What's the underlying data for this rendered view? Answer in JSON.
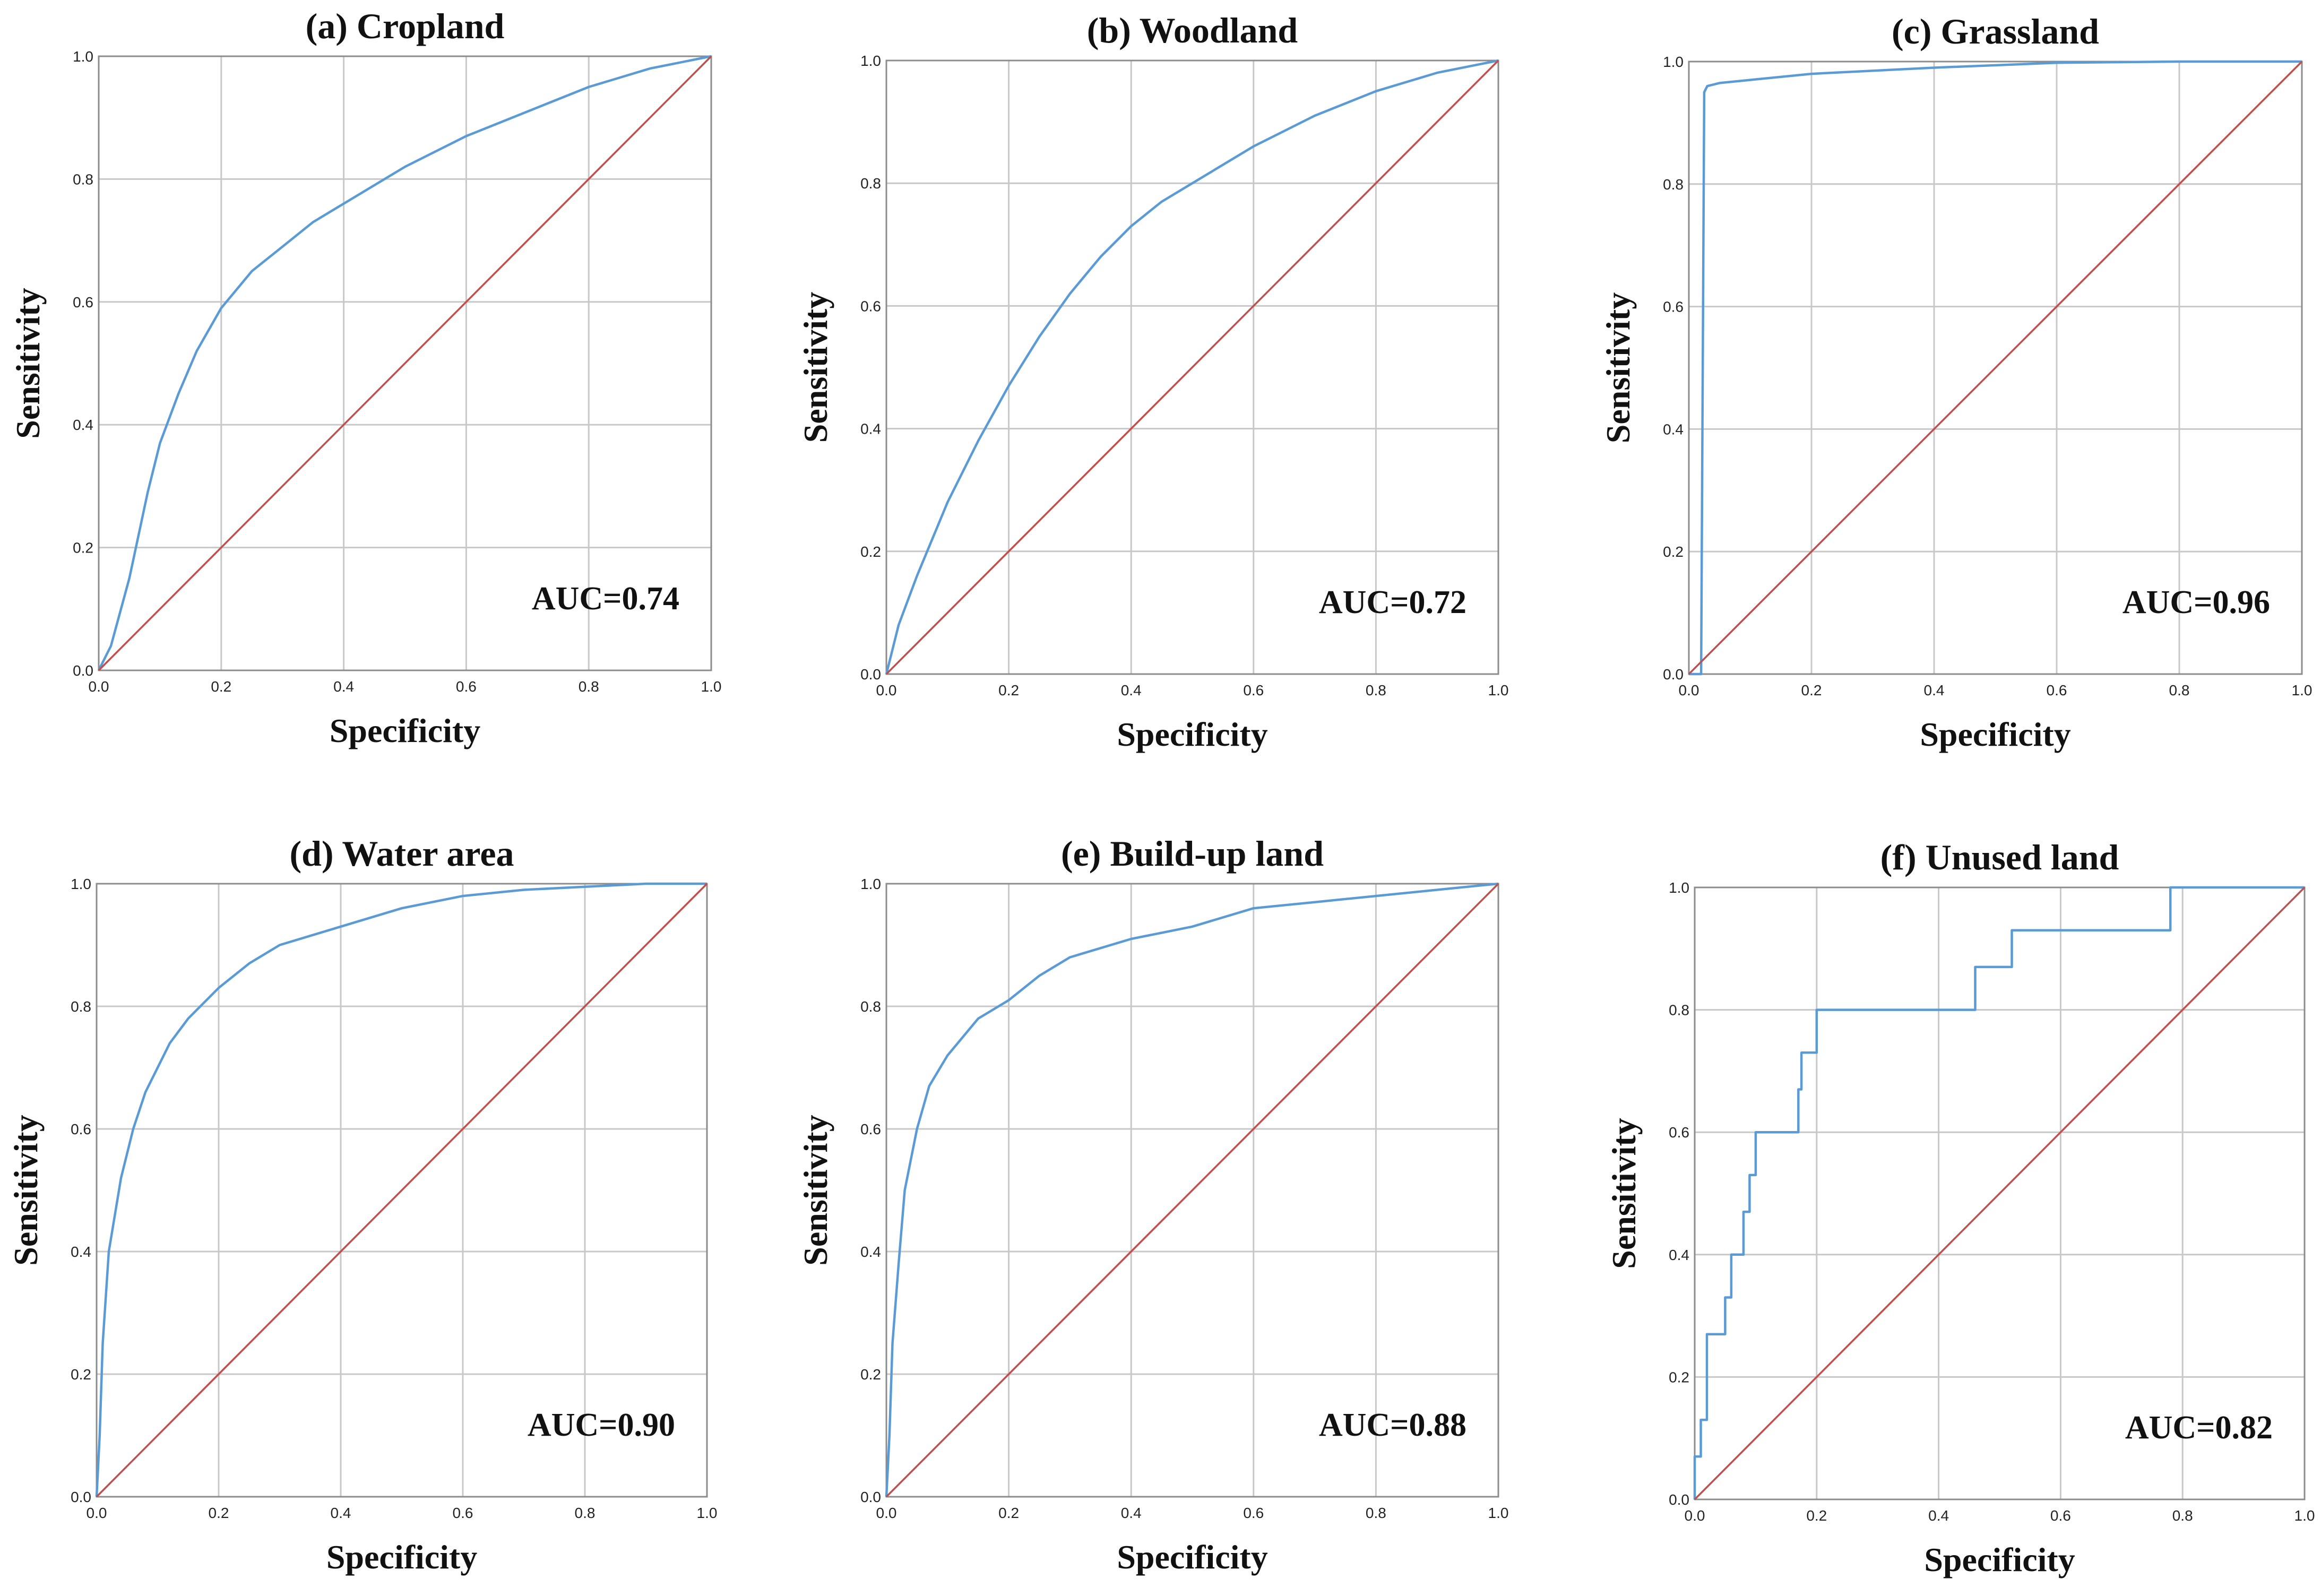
{
  "figure": {
    "description_free": true
  },
  "colors": {
    "roc_curve": "#5b9bd5",
    "reference_line": "#c0504d",
    "grid": "#c8c8c8",
    "frame": "#8c8c8c",
    "text": "#111111"
  },
  "chart_data": [
    {
      "id": "cropland",
      "type": "line",
      "title": "(a) Cropland",
      "xlabel": "Specificity",
      "ylabel": "Sensitivity",
      "auc_label": "AUC=0.74",
      "xlim": [
        0,
        1
      ],
      "ylim": [
        0,
        1
      ],
      "xticks": [
        "0.0",
        "0.2",
        "0.4",
        "0.6",
        "0.8",
        "1.0"
      ],
      "yticks": [
        "0.0",
        "0.2",
        "0.4",
        "0.6",
        "0.8",
        "1.0"
      ],
      "grid": true,
      "series": [
        {
          "name": "ROC curve",
          "color": "#5b9bd5",
          "x": [
            0,
            0.02,
            0.05,
            0.08,
            0.1,
            0.13,
            0.16,
            0.2,
            0.25,
            0.3,
            0.35,
            0.4,
            0.5,
            0.6,
            0.7,
            0.8,
            0.9,
            1.0
          ],
          "y": [
            0,
            0.04,
            0.15,
            0.29,
            0.37,
            0.45,
            0.52,
            0.59,
            0.65,
            0.69,
            0.73,
            0.76,
            0.82,
            0.87,
            0.91,
            0.95,
            0.98,
            1.0
          ]
        },
        {
          "name": "Reference line",
          "color": "#c0504d",
          "x": [
            0,
            1
          ],
          "y": [
            0,
            1
          ]
        }
      ]
    },
    {
      "id": "woodland",
      "type": "line",
      "title": "(b) Woodland",
      "xlabel": "Specificity",
      "ylabel": "Sensitivity",
      "auc_label": "AUC=0.72",
      "xlim": [
        0,
        1
      ],
      "ylim": [
        0,
        1
      ],
      "xticks": [
        "0.0",
        "0.2",
        "0.4",
        "0.6",
        "0.8",
        "1.0"
      ],
      "yticks": [
        "0.0",
        "0.2",
        "0.4",
        "0.6",
        "0.8",
        "1.0"
      ],
      "grid": true,
      "series": [
        {
          "name": "ROC curve",
          "color": "#5b9bd5",
          "x": [
            0,
            0.02,
            0.05,
            0.1,
            0.15,
            0.2,
            0.25,
            0.3,
            0.35,
            0.4,
            0.45,
            0.5,
            0.6,
            0.7,
            0.8,
            0.9,
            1.0
          ],
          "y": [
            0,
            0.08,
            0.16,
            0.28,
            0.38,
            0.47,
            0.55,
            0.62,
            0.68,
            0.73,
            0.77,
            0.8,
            0.86,
            0.91,
            0.95,
            0.98,
            1.0
          ]
        },
        {
          "name": "Reference line",
          "color": "#c0504d",
          "x": [
            0,
            1
          ],
          "y": [
            0,
            1
          ]
        }
      ]
    },
    {
      "id": "grassland",
      "type": "line",
      "title": "(c) Grassland",
      "xlabel": "Specificity",
      "ylabel": "Sensitivity",
      "auc_label": "AUC=0.96",
      "xlim": [
        0,
        1
      ],
      "ylim": [
        0,
        1
      ],
      "xticks": [
        "0.0",
        "0.2",
        "0.4",
        "0.6",
        "0.8",
        "1.0"
      ],
      "yticks": [
        "0.0",
        "0.2",
        "0.4",
        "0.6",
        "0.8",
        "1.0"
      ],
      "grid": true,
      "series": [
        {
          "name": "ROC curve",
          "color": "#5b9bd5",
          "x": [
            0,
            0.02,
            0.025,
            0.03,
            0.05,
            0.1,
            0.2,
            0.4,
            0.6,
            0.8,
            1.0
          ],
          "y": [
            0,
            0.0,
            0.95,
            0.96,
            0.965,
            0.97,
            0.98,
            0.99,
            0.998,
            1.0,
            1.0
          ]
        },
        {
          "name": "Reference line",
          "color": "#c0504d",
          "x": [
            0,
            1
          ],
          "y": [
            0,
            1
          ]
        }
      ]
    },
    {
      "id": "water-area",
      "type": "line",
      "title": "(d) Water area",
      "xlabel": "Specificity",
      "ylabel": "Sensitivity",
      "auc_label": "AUC=0.90",
      "xlim": [
        0,
        1
      ],
      "ylim": [
        0,
        1
      ],
      "xticks": [
        "0.0",
        "0.2",
        "0.4",
        "0.6",
        "0.8",
        "1.0"
      ],
      "yticks": [
        "0.0",
        "0.2",
        "0.4",
        "0.6",
        "0.8",
        "1.0"
      ],
      "grid": true,
      "series": [
        {
          "name": "ROC curve",
          "color": "#5b9bd5",
          "x": [
            0,
            0.005,
            0.01,
            0.02,
            0.04,
            0.06,
            0.08,
            0.1,
            0.12,
            0.15,
            0.18,
            0.2,
            0.25,
            0.3,
            0.4,
            0.5,
            0.6,
            0.7,
            0.8,
            0.9,
            1.0
          ],
          "y": [
            0,
            0.1,
            0.25,
            0.4,
            0.52,
            0.6,
            0.66,
            0.7,
            0.74,
            0.78,
            0.81,
            0.83,
            0.87,
            0.9,
            0.93,
            0.96,
            0.98,
            0.99,
            0.995,
            1.0,
            1.0
          ]
        },
        {
          "name": "Reference line",
          "color": "#c0504d",
          "x": [
            0,
            1
          ],
          "y": [
            0,
            1
          ]
        }
      ]
    },
    {
      "id": "build-up-land",
      "type": "line",
      "title": "(e) Build-up land",
      "xlabel": "Specificity",
      "ylabel": "Sensitivity",
      "auc_label": "AUC=0.88",
      "xlim": [
        0,
        1
      ],
      "ylim": [
        0,
        1
      ],
      "xticks": [
        "0.0",
        "0.2",
        "0.4",
        "0.6",
        "0.8",
        "1.0"
      ],
      "yticks": [
        "0.0",
        "0.2",
        "0.4",
        "0.6",
        "0.8",
        "1.0"
      ],
      "grid": true,
      "series": [
        {
          "name": "ROC curve",
          "color": "#5b9bd5",
          "x": [
            0,
            0.005,
            0.01,
            0.02,
            0.03,
            0.05,
            0.07,
            0.1,
            0.15,
            0.2,
            0.25,
            0.3,
            0.4,
            0.5,
            0.6,
            0.7,
            0.8,
            0.9,
            1.0
          ],
          "y": [
            0,
            0.1,
            0.25,
            0.38,
            0.5,
            0.6,
            0.67,
            0.72,
            0.78,
            0.81,
            0.85,
            0.88,
            0.91,
            0.93,
            0.96,
            0.97,
            0.98,
            0.99,
            1.0
          ]
        },
        {
          "name": "Reference line",
          "color": "#c0504d",
          "x": [
            0,
            1
          ],
          "y": [
            0,
            1
          ]
        }
      ]
    },
    {
      "id": "unused-land",
      "type": "line",
      "title": "(f) Unused land",
      "xlabel": "Specificity",
      "ylabel": "Sensitivity",
      "auc_label": "AUC=0.82",
      "xlim": [
        0,
        1
      ],
      "ylim": [
        0,
        1
      ],
      "xticks": [
        "0.0",
        "0.2",
        "0.4",
        "0.6",
        "0.8",
        "1.0"
      ],
      "yticks": [
        "0.0",
        "0.2",
        "0.4",
        "0.6",
        "0.8",
        "1.0"
      ],
      "grid": true,
      "series": [
        {
          "name": "ROC curve",
          "color": "#5b9bd5",
          "x": [
            0.0,
            0.0,
            0.01,
            0.01,
            0.02,
            0.02,
            0.05,
            0.05,
            0.06,
            0.06,
            0.08,
            0.08,
            0.09,
            0.09,
            0.1,
            0.1,
            0.17,
            0.17,
            0.175,
            0.175,
            0.2,
            0.2,
            0.46,
            0.46,
            0.52,
            0.52,
            0.78,
            0.78,
            1.0
          ],
          "y": [
            0.0,
            0.07,
            0.07,
            0.13,
            0.13,
            0.27,
            0.27,
            0.33,
            0.33,
            0.4,
            0.4,
            0.47,
            0.47,
            0.53,
            0.53,
            0.6,
            0.6,
            0.67,
            0.67,
            0.73,
            0.73,
            0.8,
            0.8,
            0.87,
            0.87,
            0.93,
            0.93,
            1.0,
            1.0
          ]
        },
        {
          "name": "Reference line",
          "color": "#c0504d",
          "x": [
            0,
            1
          ],
          "y": [
            0,
            1
          ]
        }
      ]
    }
  ]
}
